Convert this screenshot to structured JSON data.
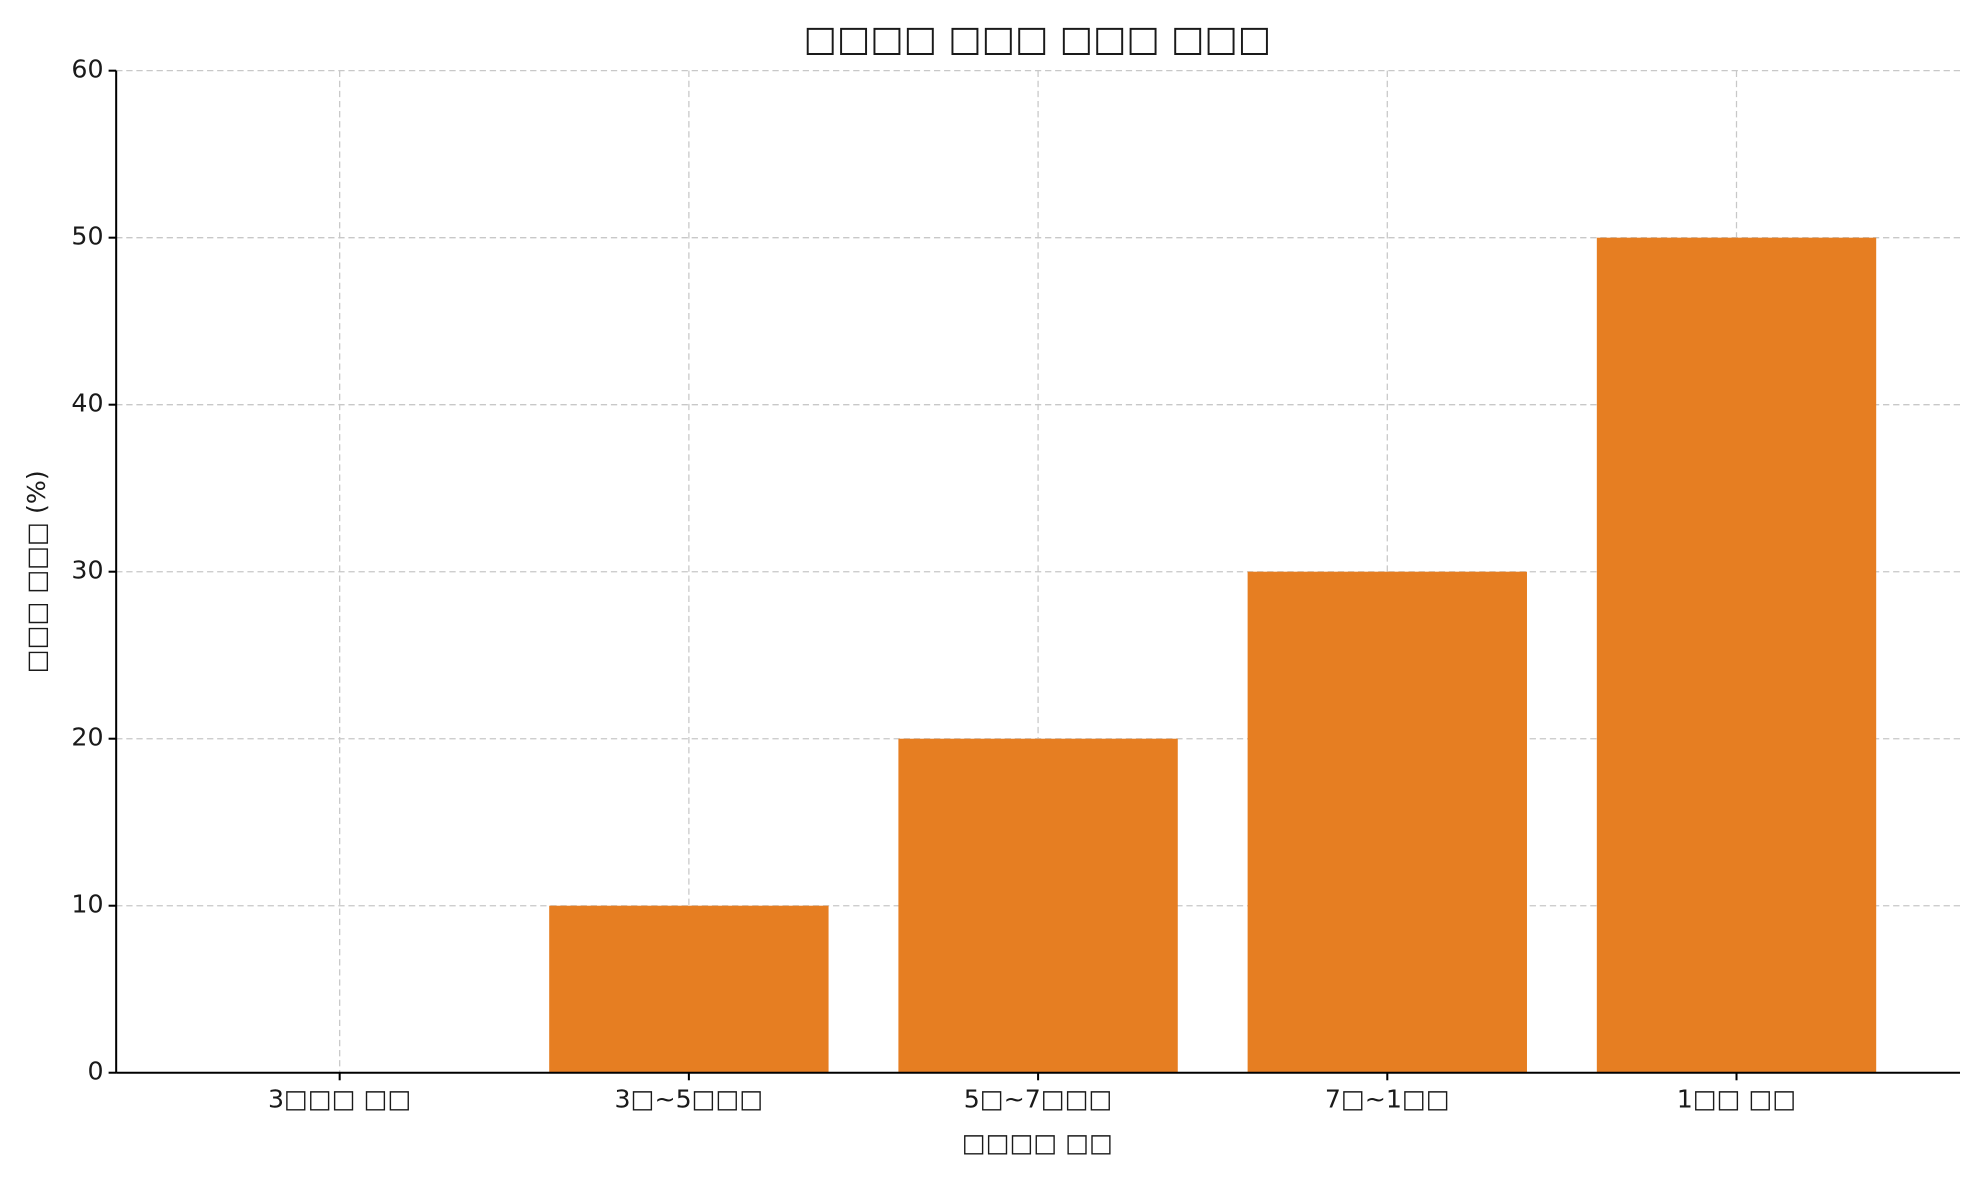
{
  "chart_data": {
    "type": "bar",
    "title": "□□□□ □□□ □□□ □□□",
    "x_label": "□□□□ □□",
    "y_label": "□□□ □□□ (%)",
    "categories": [
      "3□□□ □□",
      "3□~5□□□",
      "5□~7□□□",
      "7□~1□□",
      "1□□ □□"
    ],
    "values": [
      0,
      10,
      20,
      30,
      50
    ],
    "color": "#e67e22",
    "ylim": [
      0,
      60
    ],
    "yticks": [
      0,
      10,
      20,
      30,
      40,
      50,
      60
    ],
    "grid": true
  }
}
